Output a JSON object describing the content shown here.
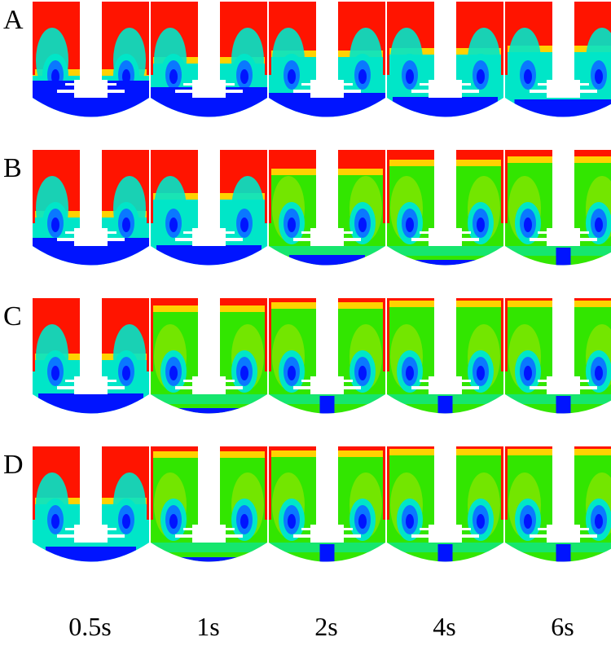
{
  "figure": {
    "row_labels": [
      "A",
      "B",
      "C",
      "D"
    ],
    "time_labels": [
      "0.5s",
      "1s",
      "2s",
      "4s",
      "6s"
    ],
    "colors": {
      "high": "#ff1400",
      "upper_mid": "#ffd200",
      "mid": "#32e600",
      "lower_mid": "#00e6c8",
      "low_mid": "#0a78ff",
      "low": "#0014ff",
      "background": "#ffffff"
    },
    "panels": [
      [
        {
          "red": 0.55,
          "blue": 0.35
        },
        {
          "red": 0.45,
          "blue": 0.3
        },
        {
          "red": 0.4,
          "blue": 0.25
        },
        {
          "red": 0.38,
          "blue": 0.22
        },
        {
          "red": 0.36,
          "blue": 0.2
        }
      ],
      [
        {
          "red": 0.5,
          "blue": 0.28
        },
        {
          "red": 0.35,
          "blue": 0.22
        },
        {
          "red": 0.15,
          "blue": 0.14
        },
        {
          "red": 0.08,
          "blue": 0.1
        },
        {
          "red": 0.05,
          "blue": 0.08
        }
      ],
      [
        {
          "red": 0.45,
          "blue": 0.22
        },
        {
          "red": 0.06,
          "blue": 0.1
        },
        {
          "red": 0.03,
          "blue": 0.07
        },
        {
          "red": 0.02,
          "blue": 0.06
        },
        {
          "red": 0.02,
          "blue": 0.06
        }
      ],
      [
        {
          "red": 0.42,
          "blue": 0.18
        },
        {
          "red": 0.04,
          "blue": 0.09
        },
        {
          "red": 0.03,
          "blue": 0.06
        },
        {
          "red": 0.02,
          "blue": 0.05
        },
        {
          "red": 0.02,
          "blue": 0.05
        }
      ]
    ]
  }
}
